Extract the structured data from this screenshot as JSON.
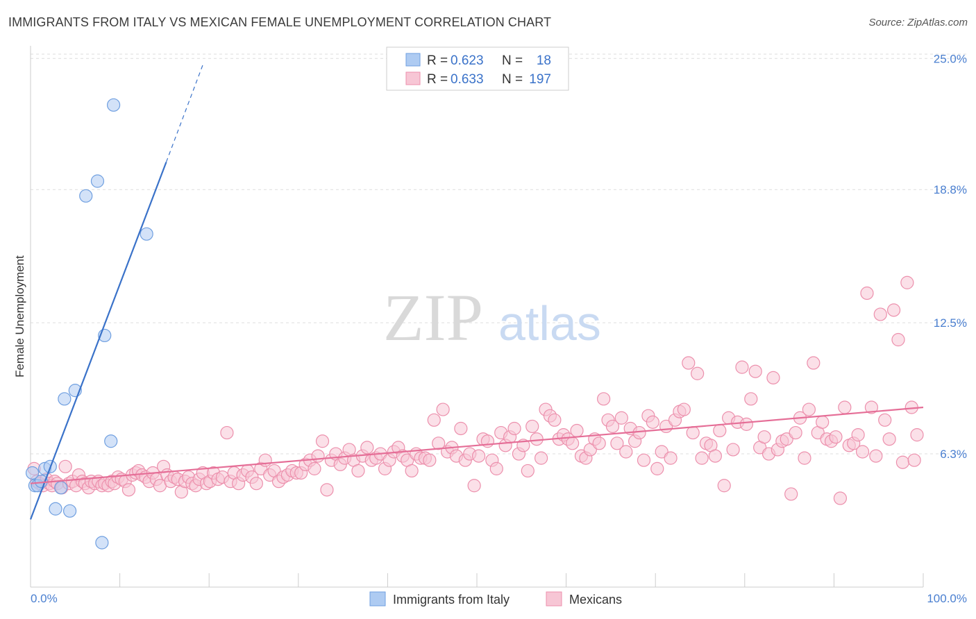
{
  "title": "IMMIGRANTS FROM ITALY VS MEXICAN FEMALE UNEMPLOYMENT CORRELATION CHART",
  "source": "Source: ZipAtlas.com",
  "watermark": {
    "zip": "ZIP",
    "atlas": "atlas"
  },
  "legend": {
    "r_label": "R =",
    "n_label": "N =",
    "rows": [
      {
        "r": "0.623",
        "n": "18"
      },
      {
        "r": "0.633",
        "n": "197"
      }
    ]
  },
  "colors": {
    "italy_fill": "#aecbf2",
    "italy_stroke": "#6f9fe0",
    "italy_line": "#3a72c9",
    "mexican_fill": "#f7c6d5",
    "mexican_stroke": "#ec8fac",
    "mexican_line": "#e56e97",
    "tick_text": "#4a7fd0",
    "grid": "#dddddd"
  },
  "chart_data": {
    "type": "scatter",
    "title": "IMMIGRANTS FROM ITALY VS MEXICAN FEMALE UNEMPLOYMENT CORRELATION CHART",
    "xlabel": "",
    "ylabel": "Female Unemployment",
    "xlim": [
      0,
      100
    ],
    "ylim": [
      0,
      25.6
    ],
    "x_tick_labels": [
      "0.0%",
      "100.0%"
    ],
    "y_ticks": [
      6.3,
      12.5,
      18.8,
      25.0
    ],
    "y_tick_labels": [
      "6.3%",
      "12.5%",
      "18.8%",
      "25.0%"
    ],
    "grid": "horizontal dashed",
    "legend_position": "top-center",
    "series": [
      {
        "name": "Immigrants from Italy",
        "r": 0.623,
        "n": 18,
        "trend": {
          "x0": 0,
          "y0": 3.2,
          "x1": 15.2,
          "y1": 20.1,
          "dash_x1": 19.3,
          "dash_y1": 24.7
        },
        "points": [
          [
            0.2,
            5.4
          ],
          [
            0.5,
            4.8
          ],
          [
            0.8,
            4.8
          ],
          [
            1.2,
            5.0
          ],
          [
            1.6,
            5.6
          ],
          [
            2.2,
            5.7
          ],
          [
            2.8,
            3.7
          ],
          [
            3.4,
            4.7
          ],
          [
            3.8,
            8.9
          ],
          [
            4.4,
            3.6
          ],
          [
            5.0,
            9.3
          ],
          [
            6.2,
            18.5
          ],
          [
            7.5,
            19.2
          ],
          [
            8.0,
            2.1
          ],
          [
            8.3,
            11.9
          ],
          [
            9.0,
            6.9
          ],
          [
            9.3,
            22.8
          ],
          [
            13.0,
            16.7
          ]
        ]
      },
      {
        "name": "Mexicans",
        "r": 0.633,
        "n": 197,
        "trend": {
          "x0": 0,
          "y0": 4.9,
          "x1": 100,
          "y1": 8.5
        },
        "points": [
          [
            0.4,
            5.6
          ],
          [
            0.7,
            5.0
          ],
          [
            1.0,
            4.9
          ],
          [
            1.4,
            4.8
          ],
          [
            1.8,
            5.1
          ],
          [
            2.1,
            4.9
          ],
          [
            2.4,
            4.8
          ],
          [
            2.7,
            5.0
          ],
          [
            3.0,
            4.9
          ],
          [
            3.5,
            4.7
          ],
          [
            3.9,
            5.7
          ],
          [
            4.3,
            4.9
          ],
          [
            4.7,
            5.0
          ],
          [
            5.1,
            4.8
          ],
          [
            5.4,
            5.3
          ],
          [
            5.8,
            5.0
          ],
          [
            6.1,
            4.9
          ],
          [
            6.5,
            4.7
          ],
          [
            6.8,
            5.0
          ],
          [
            7.2,
            4.9
          ],
          [
            7.6,
            5.0
          ],
          [
            8.0,
            4.8
          ],
          [
            8.3,
            4.9
          ],
          [
            8.7,
            4.8
          ],
          [
            9.1,
            5.0
          ],
          [
            9.4,
            4.9
          ],
          [
            9.8,
            5.2
          ],
          [
            10.2,
            5.1
          ],
          [
            10.6,
            5.0
          ],
          [
            11.0,
            4.6
          ],
          [
            11.4,
            5.3
          ],
          [
            11.8,
            5.4
          ],
          [
            12.1,
            5.5
          ],
          [
            12.5,
            5.3
          ],
          [
            12.9,
            5.2
          ],
          [
            13.3,
            5.0
          ],
          [
            13.7,
            5.4
          ],
          [
            14.1,
            5.1
          ],
          [
            14.5,
            4.8
          ],
          [
            14.9,
            5.7
          ],
          [
            15.3,
            5.3
          ],
          [
            15.7,
            5.0
          ],
          [
            16.1,
            5.2
          ],
          [
            16.5,
            5.1
          ],
          [
            16.9,
            4.5
          ],
          [
            17.3,
            5.0
          ],
          [
            17.7,
            5.2
          ],
          [
            18.1,
            4.9
          ],
          [
            18.5,
            4.8
          ],
          [
            18.9,
            5.1
          ],
          [
            19.3,
            5.4
          ],
          [
            19.7,
            4.9
          ],
          [
            20.1,
            5.0
          ],
          [
            20.5,
            5.4
          ],
          [
            21.0,
            5.1
          ],
          [
            21.5,
            5.2
          ],
          [
            22.0,
            7.3
          ],
          [
            22.4,
            5.0
          ],
          [
            22.8,
            5.4
          ],
          [
            23.3,
            4.9
          ],
          [
            23.8,
            5.3
          ],
          [
            24.3,
            5.5
          ],
          [
            24.8,
            5.2
          ],
          [
            25.3,
            4.9
          ],
          [
            25.8,
            5.6
          ],
          [
            26.3,
            6.0
          ],
          [
            26.8,
            5.3
          ],
          [
            27.3,
            5.5
          ],
          [
            27.8,
            5.0
          ],
          [
            28.3,
            5.2
          ],
          [
            28.8,
            5.3
          ],
          [
            29.3,
            5.5
          ],
          [
            29.8,
            5.4
          ],
          [
            30.3,
            5.4
          ],
          [
            30.8,
            5.8
          ],
          [
            31.3,
            6.0
          ],
          [
            31.8,
            5.6
          ],
          [
            32.2,
            6.2
          ],
          [
            32.7,
            6.9
          ],
          [
            33.2,
            4.6
          ],
          [
            33.7,
            6.0
          ],
          [
            34.2,
            6.3
          ],
          [
            34.7,
            5.8
          ],
          [
            35.2,
            6.1
          ],
          [
            35.7,
            6.5
          ],
          [
            36.2,
            6.0
          ],
          [
            36.7,
            5.5
          ],
          [
            37.2,
            6.2
          ],
          [
            37.7,
            6.6
          ],
          [
            38.2,
            6.0
          ],
          [
            38.7,
            6.1
          ],
          [
            39.2,
            6.3
          ],
          [
            39.7,
            5.6
          ],
          [
            40.2,
            6.0
          ],
          [
            40.7,
            6.4
          ],
          [
            41.2,
            6.6
          ],
          [
            41.7,
            6.2
          ],
          [
            42.2,
            6.0
          ],
          [
            42.7,
            5.5
          ],
          [
            43.2,
            6.3
          ],
          [
            43.7,
            6.1
          ],
          [
            44.2,
            6.1
          ],
          [
            44.7,
            6.0
          ],
          [
            45.2,
            7.9
          ],
          [
            45.7,
            6.8
          ],
          [
            46.2,
            8.4
          ],
          [
            46.7,
            6.4
          ],
          [
            47.2,
            6.6
          ],
          [
            47.7,
            6.2
          ],
          [
            48.2,
            7.5
          ],
          [
            48.7,
            6.0
          ],
          [
            49.2,
            6.3
          ],
          [
            49.7,
            4.8
          ],
          [
            50.2,
            6.2
          ],
          [
            50.7,
            7.0
          ],
          [
            51.2,
            6.9
          ],
          [
            51.7,
            6.0
          ],
          [
            52.2,
            5.6
          ],
          [
            52.7,
            7.3
          ],
          [
            53.2,
            6.7
          ],
          [
            53.7,
            7.1
          ],
          [
            54.2,
            7.5
          ],
          [
            54.7,
            6.3
          ],
          [
            55.2,
            6.7
          ],
          [
            55.7,
            5.5
          ],
          [
            56.2,
            7.6
          ],
          [
            56.7,
            7.0
          ],
          [
            57.2,
            6.1
          ],
          [
            57.7,
            8.4
          ],
          [
            58.2,
            8.1
          ],
          [
            58.7,
            7.9
          ],
          [
            59.2,
            7.0
          ],
          [
            59.7,
            7.2
          ],
          [
            60.2,
            7.0
          ],
          [
            60.7,
            6.8
          ],
          [
            61.2,
            7.4
          ],
          [
            61.7,
            6.2
          ],
          [
            62.2,
            6.1
          ],
          [
            62.7,
            6.5
          ],
          [
            63.2,
            7.0
          ],
          [
            63.7,
            6.8
          ],
          [
            64.2,
            8.9
          ],
          [
            64.7,
            7.9
          ],
          [
            65.2,
            7.6
          ],
          [
            65.7,
            6.8
          ],
          [
            66.2,
            8.0
          ],
          [
            66.7,
            6.4
          ],
          [
            67.2,
            7.5
          ],
          [
            67.7,
            6.9
          ],
          [
            68.2,
            7.3
          ],
          [
            68.7,
            6.0
          ],
          [
            69.2,
            8.1
          ],
          [
            69.7,
            7.8
          ],
          [
            70.2,
            5.6
          ],
          [
            70.7,
            6.4
          ],
          [
            71.2,
            7.6
          ],
          [
            71.7,
            6.1
          ],
          [
            72.2,
            7.9
          ],
          [
            72.7,
            8.3
          ],
          [
            73.2,
            8.4
          ],
          [
            73.7,
            10.6
          ],
          [
            74.2,
            7.3
          ],
          [
            74.7,
            10.1
          ],
          [
            75.2,
            6.1
          ],
          [
            75.7,
            6.8
          ],
          [
            76.2,
            6.7
          ],
          [
            76.7,
            6.2
          ],
          [
            77.2,
            7.4
          ],
          [
            77.7,
            4.8
          ],
          [
            78.2,
            8.0
          ],
          [
            78.7,
            6.5
          ],
          [
            79.2,
            7.8
          ],
          [
            79.7,
            10.4
          ],
          [
            80.2,
            7.7
          ],
          [
            80.7,
            8.9
          ],
          [
            81.2,
            10.2
          ],
          [
            81.7,
            6.6
          ],
          [
            82.2,
            7.1
          ],
          [
            82.7,
            6.3
          ],
          [
            83.2,
            9.9
          ],
          [
            83.7,
            6.5
          ],
          [
            84.2,
            6.9
          ],
          [
            84.7,
            7.0
          ],
          [
            85.2,
            4.4
          ],
          [
            85.7,
            7.3
          ],
          [
            86.2,
            8.0
          ],
          [
            86.7,
            6.1
          ],
          [
            87.2,
            8.4
          ],
          [
            87.7,
            10.6
          ],
          [
            88.2,
            7.3
          ],
          [
            88.7,
            7.8
          ],
          [
            89.2,
            7.0
          ],
          [
            89.7,
            6.9
          ],
          [
            90.2,
            7.1
          ],
          [
            90.7,
            4.2
          ],
          [
            91.2,
            8.5
          ],
          [
            91.7,
            6.7
          ],
          [
            92.2,
            6.8
          ],
          [
            92.7,
            7.2
          ],
          [
            93.2,
            6.4
          ],
          [
            93.7,
            13.9
          ],
          [
            94.2,
            8.5
          ],
          [
            94.7,
            6.2
          ],
          [
            95.2,
            12.9
          ],
          [
            95.7,
            7.9
          ],
          [
            96.2,
            7.0
          ],
          [
            96.7,
            13.1
          ],
          [
            97.2,
            11.7
          ],
          [
            97.7,
            5.9
          ],
          [
            98.2,
            14.4
          ],
          [
            98.7,
            8.5
          ],
          [
            99.0,
            6.0
          ],
          [
            99.3,
            7.2
          ]
        ]
      }
    ]
  },
  "bottom_legend": [
    {
      "label": "Immigrants from Italy"
    },
    {
      "label": "Mexicans"
    }
  ]
}
